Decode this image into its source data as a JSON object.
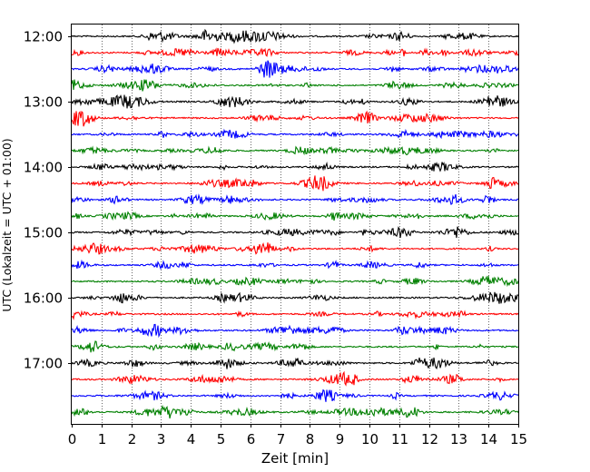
{
  "chart_data": {
    "type": "line",
    "title": "",
    "xlabel": "Zeit  [min]",
    "ylabel": "UTC (Lokalzeit = UTC + 01:00)",
    "xlim": [
      0,
      15
    ],
    "x_ticks": [
      "0",
      "1",
      "2",
      "3",
      "4",
      "5",
      "6",
      "7",
      "8",
      "9",
      "10",
      "11",
      "12",
      "13",
      "14",
      "15"
    ],
    "y_ticks": [
      "12:00",
      "13:00",
      "14:00",
      "15:00",
      "16:00",
      "17:00"
    ],
    "grid": "vertical dotted lines at each minute",
    "legend": "none",
    "trace_interval_minutes": 15,
    "start_time": "12:00",
    "trace_count": 24,
    "color_cycle": [
      "#000000",
      "#ff0000",
      "#0000ff",
      "#008000"
    ]
  }
}
